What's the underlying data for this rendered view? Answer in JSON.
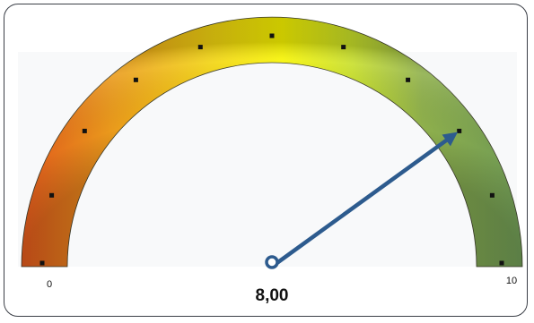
{
  "chart_data": {
    "type": "gauge",
    "min_label": "0",
    "max_label": "10",
    "range": [
      0,
      10
    ],
    "value": 8,
    "value_label": "8,00",
    "tick_values": [
      0,
      1,
      2,
      3,
      4,
      5,
      6,
      7,
      8,
      9,
      10
    ],
    "colors": {
      "low": "#e0641a",
      "mid": "#f4f200",
      "high": "#7aa35a",
      "needle": "#2d5b8e",
      "tick": "#111111"
    }
  }
}
